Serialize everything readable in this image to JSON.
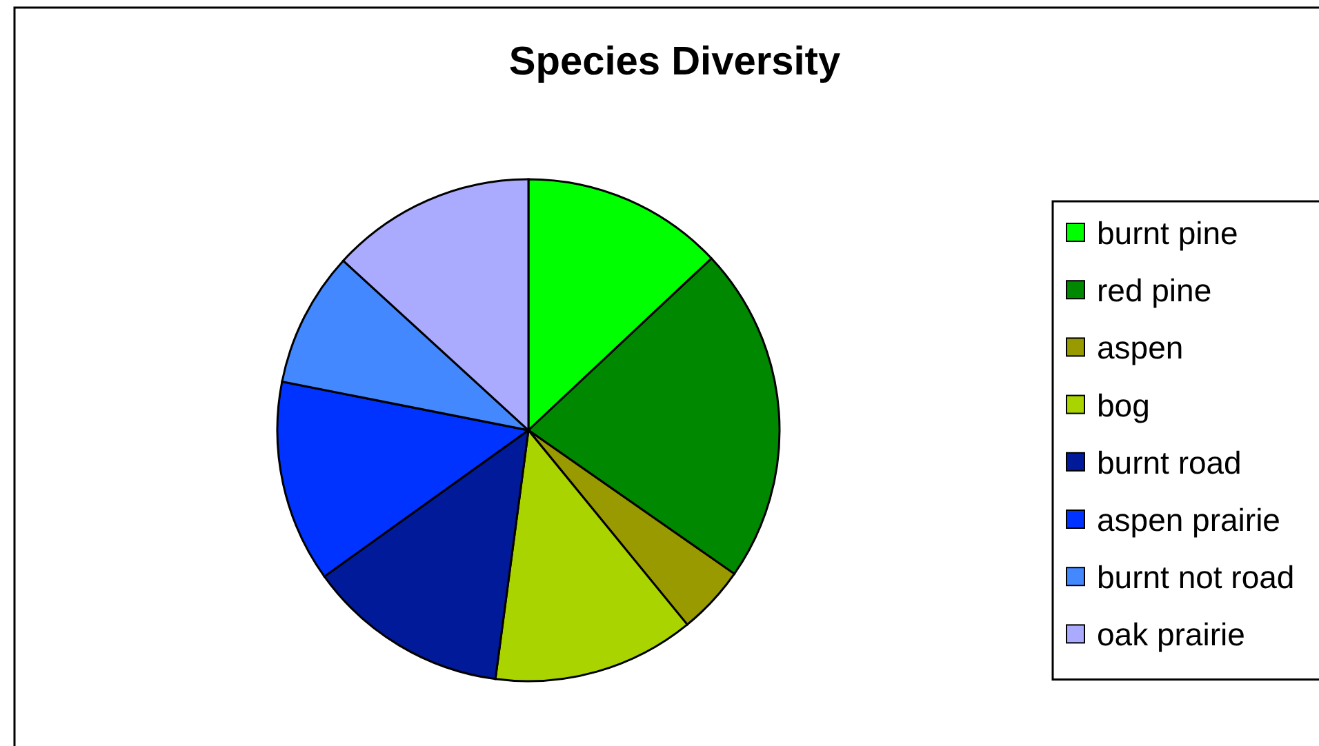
{
  "chart_data": {
    "type": "pie",
    "title": "Species Diversity",
    "categories": [
      "burnt pine",
      "red pine",
      "aspen",
      "bog",
      "burnt road",
      "aspen prairie",
      "burnt not road",
      "oak prairie"
    ],
    "values": [
      13,
      21.7,
      4.4,
      13,
      13,
      13,
      8.7,
      13.2
    ],
    "colors": [
      "#00ff00",
      "#008800",
      "#999900",
      "#aad400",
      "#001a99",
      "#0033ff",
      "#4488ff",
      "#aaaaff"
    ],
    "legend": "right"
  }
}
